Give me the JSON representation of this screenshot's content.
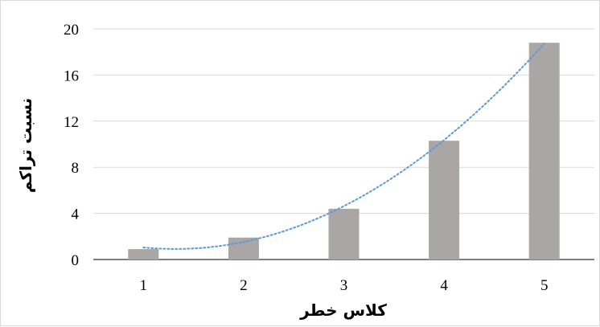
{
  "chart_data": {
    "type": "bar",
    "categories": [
      "1",
      "2",
      "3",
      "4",
      "5"
    ],
    "values": [
      0.9,
      1.9,
      4.4,
      10.3,
      18.8
    ],
    "xlabel": "کلاس خطر",
    "ylabel": "نسبت تراکم",
    "ylim": [
      0,
      20
    ],
    "yticks": [
      "0",
      "4",
      "8",
      "12",
      "16",
      "20"
    ],
    "grid": true,
    "legend": "none",
    "trendline": {
      "type": "polynomial",
      "style": "dotted",
      "color": "#5b9bd5"
    },
    "colors": {
      "bar": "#aba6a6",
      "grid": "#d9d9d9",
      "axis": "#000000"
    }
  }
}
